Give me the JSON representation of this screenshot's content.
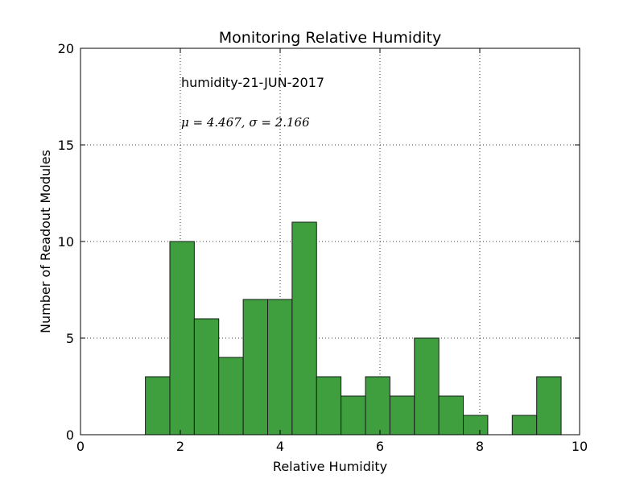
{
  "chart_data": {
    "type": "bar",
    "title": "Monitoring Relative Humidity",
    "xlabel": "Relative Humidity",
    "ylabel": "Number of Readout Modules",
    "xlim": [
      0,
      10
    ],
    "ylim": [
      0,
      20
    ],
    "xticks": [
      0,
      2,
      4,
      6,
      8,
      10
    ],
    "yticks": [
      0,
      5,
      10,
      15,
      20
    ],
    "grid": true,
    "bar_color": "#3f9f3f",
    "bin_edges": [
      1.3,
      1.79,
      2.28,
      2.77,
      3.26,
      3.75,
      4.24,
      4.73,
      5.22,
      5.71,
      6.2,
      6.69,
      7.18,
      7.67,
      8.16,
      8.65,
      9.14,
      9.63
    ],
    "values": [
      3,
      10,
      6,
      4,
      7,
      7,
      11,
      3,
      2,
      3,
      2,
      5,
      2,
      1,
      0,
      1,
      3
    ],
    "annotations": [
      "humidity-21-JUN-2017",
      "μ = 4.467,  σ = 2.166"
    ]
  }
}
